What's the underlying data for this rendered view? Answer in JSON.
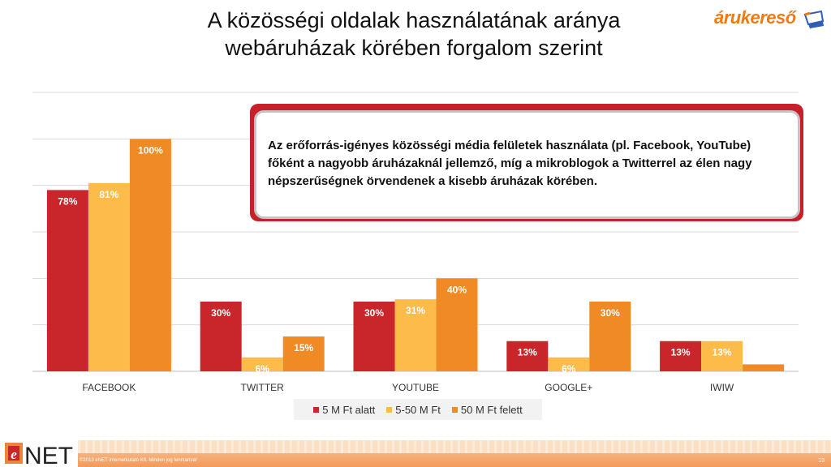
{
  "title": {
    "line1": "A közösségi oldalak használatának aránya",
    "line2": "webáruházak körében forgalom szerint"
  },
  "brand_logo_text": "árukereső",
  "callout_text": "Az erőforrás-igényes közösségi média felületek használata (pl. Facebook, YouTube) főként a nagyobb áruházaknál jellemző, míg a mikroblogok a Twitterrel az élen nagy népszerűségnek örvendenek a kisebb áruházak körében.",
  "chart_data": {
    "type": "bar",
    "categories": [
      "FACEBOOK",
      "TWITTER",
      "YOUTUBE",
      "GOOGLE+",
      "IWIW"
    ],
    "series": [
      {
        "name": "5 M Ft alatt",
        "values": [
          78,
          30,
          30,
          13,
          13
        ],
        "color": "#c8262a"
      },
      {
        "name": "5-50 M Ft",
        "values": [
          81,
          6,
          31,
          6,
          13
        ],
        "color": "#fdbc4a"
      },
      {
        "name": "50 M Ft felett",
        "values": [
          100,
          15,
          40,
          30,
          3
        ],
        "color": "#f08a24"
      }
    ],
    "labels": [
      [
        "78%",
        "30%",
        "30%",
        "13%",
        "13%"
      ],
      [
        "81%",
        "6%",
        "31%",
        "6%",
        "13%"
      ],
      [
        "100%",
        "15%",
        "40%",
        "30%",
        "3%"
      ]
    ],
    "ylim": [
      0,
      120
    ],
    "grid": true,
    "legend_position": "bottom"
  },
  "footer": {
    "logo_text": "NET",
    "copyright": "©2013 eNET Internetkutató Kft. Minden jog fenntartva!",
    "page_number": "13"
  }
}
